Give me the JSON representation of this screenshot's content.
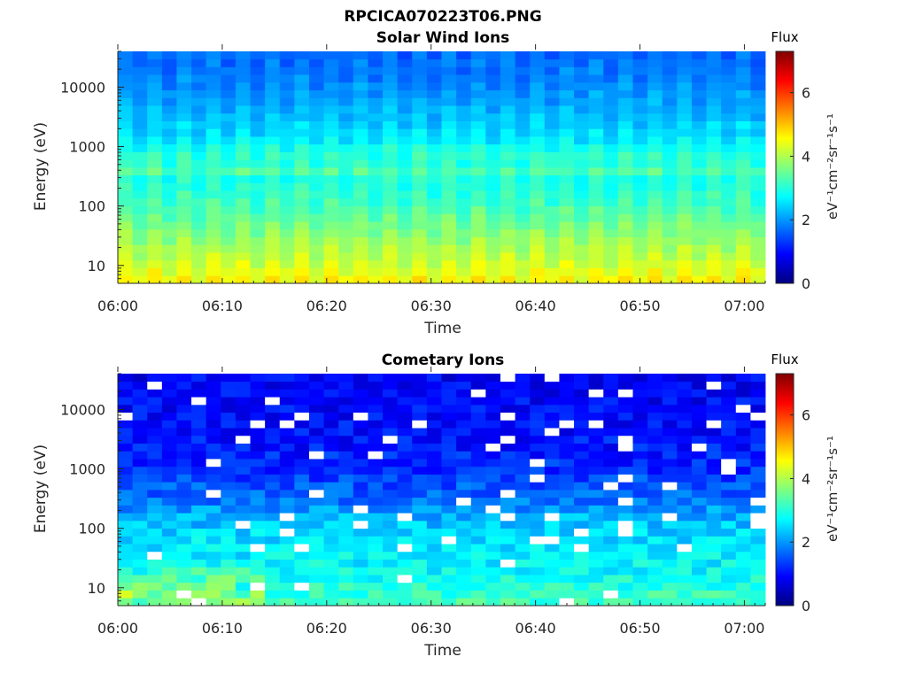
{
  "figure": {
    "title": "RPCICA070223T06.PNG"
  },
  "colors": {
    "colormap": [
      "#00007f",
      "#0000ff",
      "#007fff",
      "#00ffff",
      "#7fff7f",
      "#ffff00",
      "#ff7f00",
      "#ff0000",
      "#7f0000"
    ],
    "axis": "#262626",
    "missing": "#ffffff"
  },
  "chart_data": [
    {
      "type": "heatmap",
      "title": "Solar Wind Ions",
      "xlabel": "Time",
      "ylabel": "Energy (eV)",
      "xlim": [
        "06:00",
        "07:02"
      ],
      "xticks": [
        "06:00",
        "06:10",
        "06:20",
        "06:30",
        "06:40",
        "06:50",
        "07:00"
      ],
      "yscale": "log",
      "ylim": [
        5,
        40000
      ],
      "yticks": [
        10,
        100,
        1000,
        10000
      ],
      "ytick_labels": [
        "10",
        "100",
        "1000",
        "10000"
      ],
      "colorbar": {
        "title": "Flux",
        "label": "eV⁻¹cm⁻²sr⁻¹s⁻¹",
        "range": [
          0,
          7.3
        ],
        "ticks": [
          0,
          2,
          4,
          6
        ],
        "tick_labels": [
          "0",
          "2",
          "4",
          "6"
        ]
      },
      "profile": {
        "description": "log10 flux vs energy",
        "energy": [
          6,
          10,
          20,
          40,
          80,
          150,
          300,
          400,
          600,
          800,
          1000,
          2000,
          5000,
          10000,
          20000,
          40000
        ],
        "flux": [
          4.5,
          4.2,
          3.9,
          3.6,
          3.3,
          3.05,
          2.9,
          3.3,
          2.85,
          3.15,
          2.7,
          2.4,
          2.1,
          1.9,
          1.75,
          1.6
        ]
      },
      "time_modulation": "alternating bright/dark stripes about every 1.4 min",
      "missing_fraction": 0
    },
    {
      "type": "heatmap",
      "title": "Cometary Ions",
      "xlabel": "Time",
      "ylabel": "Energy (eV)",
      "xlim": [
        "06:00",
        "07:02"
      ],
      "xticks": [
        "06:00",
        "06:10",
        "06:20",
        "06:30",
        "06:40",
        "06:50",
        "07:00"
      ],
      "yscale": "log",
      "ylim": [
        5,
        40000
      ],
      "yticks": [
        10,
        100,
        1000,
        10000
      ],
      "ytick_labels": [
        "10",
        "100",
        "1000",
        "10000"
      ],
      "colorbar": {
        "title": "Flux",
        "label": "eV⁻¹cm⁻²sr⁻¹s⁻¹",
        "range": [
          0,
          7.3
        ],
        "ticks": [
          0,
          2,
          4,
          6
        ],
        "tick_labels": [
          "0",
          "2",
          "4",
          "6"
        ]
      },
      "profile": {
        "description": "log10 flux vs energy",
        "energy": [
          6,
          10,
          20,
          40,
          80,
          150,
          300,
          600,
          1000,
          2000,
          5000,
          10000,
          20000,
          40000
        ],
        "flux": [
          3.2,
          3.0,
          2.75,
          2.6,
          2.5,
          2.2,
          1.75,
          1.45,
          1.25,
          1.1,
          1.0,
          0.95,
          0.9,
          0.85
        ]
      },
      "early_boost": {
        "until": "06:14",
        "low_energy_max": 25,
        "extra": 0.9
      },
      "missing_fraction": 0.05
    }
  ]
}
